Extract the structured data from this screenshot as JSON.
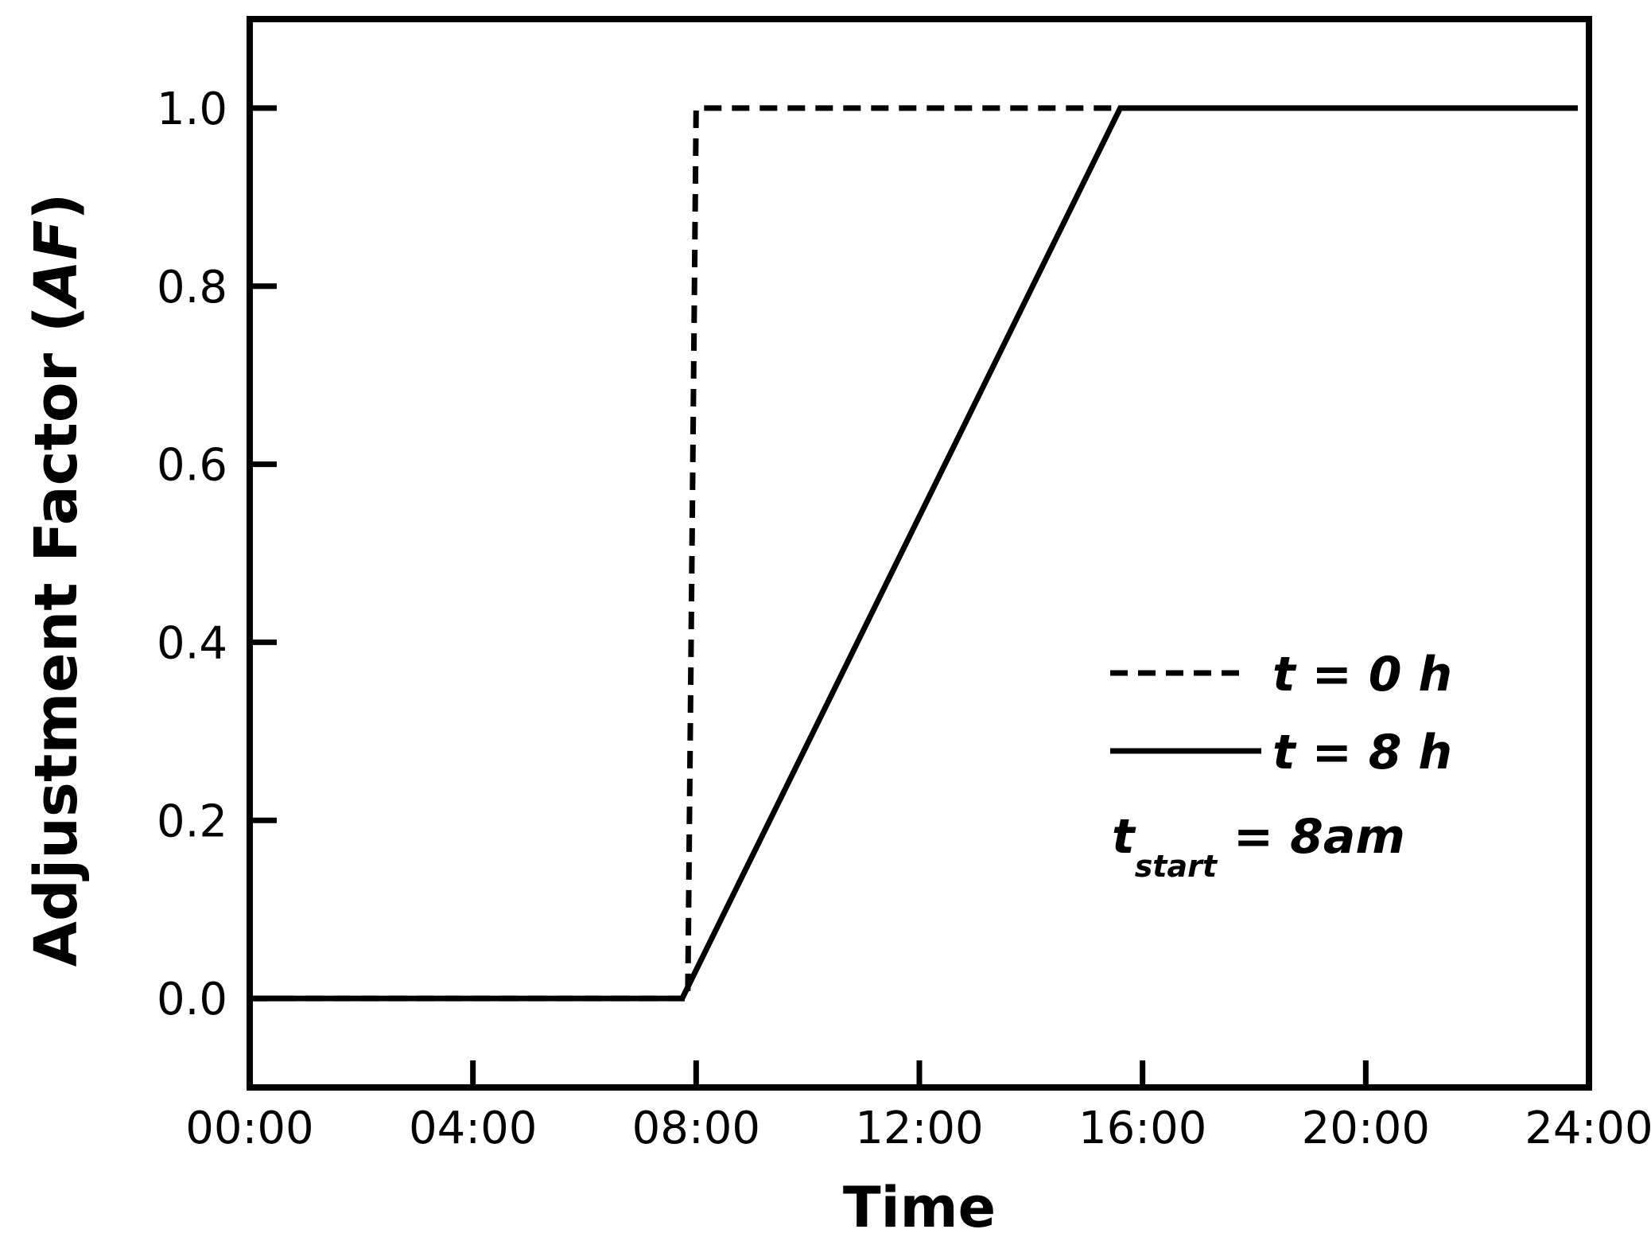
{
  "chart_data": {
    "type": "line",
    "title": "",
    "xlabel": "Time",
    "ylabel_main": "Adjustment Factor (",
    "ylabel_italic": "AF",
    "ylabel_close": ")",
    "x_unit": "hours",
    "xlim": [
      0,
      24
    ],
    "ylim": [
      -0.1,
      1.1
    ],
    "x_ticks": [
      {
        "value": 0,
        "label": "00:00"
      },
      {
        "value": 4,
        "label": "04:00"
      },
      {
        "value": 8,
        "label": "08:00"
      },
      {
        "value": 12,
        "label": "12:00"
      },
      {
        "value": 16,
        "label": "16:00"
      },
      {
        "value": 20,
        "label": "20:00"
      },
      {
        "value": 24,
        "label": "24:00"
      }
    ],
    "y_ticks": [
      {
        "value": 0.0,
        "label": "0.0"
      },
      {
        "value": 0.2,
        "label": "0.2"
      },
      {
        "value": 0.4,
        "label": "0.4"
      },
      {
        "value": 0.6,
        "label": "0.6"
      },
      {
        "value": 0.8,
        "label": "0.8"
      },
      {
        "value": 1.0,
        "label": "1.0"
      }
    ],
    "grid": false,
    "legend_position": "bottom-right",
    "series": [
      {
        "name": "t = 0 h",
        "style": "dashed",
        "color": "#000000",
        "x": [
          0,
          7.85,
          8.0,
          15.6
        ],
        "y": [
          0,
          0,
          1.0,
          1.0
        ]
      },
      {
        "name": "t = 8 h",
        "style": "solid",
        "color": "#000000",
        "x": [
          0,
          7.75,
          15.6,
          23.8
        ],
        "y": [
          0,
          0,
          1.0,
          1.0
        ]
      }
    ],
    "annotation": {
      "main": "t",
      "subscript": "start",
      "rest": " = 8am"
    }
  }
}
